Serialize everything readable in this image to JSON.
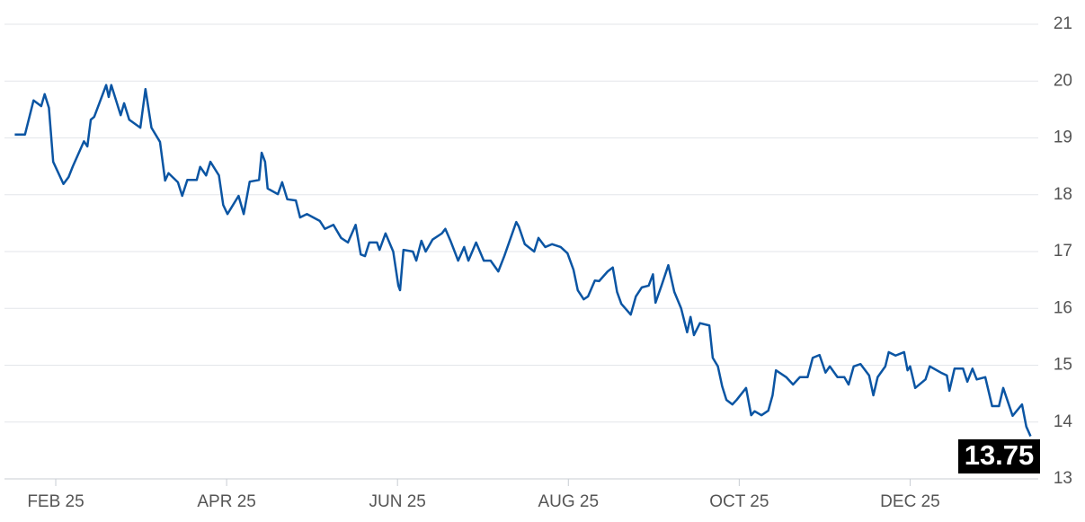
{
  "chart_data": {
    "type": "line",
    "color": "#0b55a3",
    "grid": true,
    "x": [
      0.52,
      0.64,
      0.74,
      0.83,
      0.87,
      0.92,
      0.97,
      1.09,
      1.15,
      1.2,
      1.33,
      1.37,
      1.41,
      1.45,
      1.59,
      1.62,
      1.65,
      1.76,
      1.8,
      1.86,
      1.99,
      2.05,
      2.12,
      2.22,
      2.28,
      2.32,
      2.43,
      2.48,
      2.54,
      2.65,
      2.69,
      2.76,
      2.81,
      2.91,
      2.96,
      3.01,
      3.14,
      3.2,
      3.27,
      3.38,
      3.41,
      3.45,
      3.48,
      3.6,
      3.65,
      3.71,
      3.81,
      3.86,
      3.94,
      4.09,
      4.15,
      4.25,
      4.34,
      4.42,
      4.51,
      4.57,
      4.62,
      4.67,
      4.76,
      4.79,
      4.86,
      4.95,
      5.01,
      5.03,
      5.07,
      5.18,
      5.22,
      5.28,
      5.33,
      5.41,
      5.52,
      5.56,
      5.62,
      5.71,
      5.78,
      5.83,
      5.92,
      6.01,
      6.09,
      6.18,
      6.25,
      6.39,
      6.42,
      6.49,
      6.6,
      6.65,
      6.73,
      6.81,
      6.91,
      6.99,
      7.06,
      7.11,
      7.18,
      7.23,
      7.31,
      7.36,
      7.46,
      7.52,
      7.57,
      7.62,
      7.73,
      7.79,
      7.86,
      7.94,
      7.99,
      8.02,
      8.09,
      8.17,
      8.24,
      8.32,
      8.39,
      8.43,
      8.47,
      8.54,
      8.65,
      8.69,
      8.75,
      8.8,
      8.85,
      8.92,
      8.97,
      9.08,
      9.14,
      9.18,
      9.26,
      9.34,
      9.39,
      9.43,
      9.55,
      9.63,
      9.71,
      9.8,
      9.86,
      9.94,
      10.01,
      10.06,
      10.15,
      10.23,
      10.28,
      10.34,
      10.42,
      10.52,
      10.57,
      10.62,
      10.71,
      10.75,
      10.83,
      10.93,
      10.97,
      11.0,
      11.06,
      11.18,
      11.23,
      11.36,
      11.43,
      11.46,
      11.52,
      11.62,
      11.67,
      11.73,
      11.78,
      11.88,
      11.96,
      12.04,
      12.09,
      12.2,
      12.31,
      12.36,
      12.41
    ],
    "values": [
      19.06,
      19.06,
      19.66,
      19.56,
      19.77,
      19.53,
      18.58,
      18.19,
      18.31,
      18.5,
      18.94,
      18.85,
      19.32,
      19.37,
      19.93,
      19.72,
      19.93,
      19.4,
      19.61,
      19.32,
      19.18,
      19.86,
      19.18,
      18.93,
      18.25,
      18.38,
      18.22,
      17.98,
      18.26,
      18.26,
      18.49,
      18.34,
      18.58,
      18.34,
      17.82,
      17.66,
      17.98,
      17.66,
      18.23,
      18.26,
      18.74,
      18.58,
      18.11,
      18.01,
      18.22,
      17.92,
      17.9,
      17.6,
      17.66,
      17.54,
      17.4,
      17.47,
      17.24,
      17.16,
      17.47,
      16.95,
      16.92,
      17.16,
      17.16,
      17.03,
      17.32,
      17.0,
      16.4,
      16.32,
      17.03,
      17.0,
      16.84,
      17.19,
      17.0,
      17.21,
      17.32,
      17.4,
      17.19,
      16.84,
      17.08,
      16.84,
      17.16,
      16.84,
      16.84,
      16.65,
      16.92,
      17.52,
      17.44,
      17.13,
      17.0,
      17.24,
      17.08,
      17.13,
      17.08,
      16.97,
      16.68,
      16.32,
      16.16,
      16.21,
      16.49,
      16.48,
      16.65,
      16.72,
      16.29,
      16.08,
      15.89,
      16.21,
      16.37,
      16.4,
      16.6,
      16.1,
      16.4,
      16.76,
      16.29,
      16.0,
      15.58,
      15.85,
      15.53,
      15.74,
      15.7,
      15.13,
      14.98,
      14.63,
      14.39,
      14.31,
      14.39,
      14.6,
      14.12,
      14.19,
      14.12,
      14.2,
      14.47,
      14.91,
      14.79,
      14.66,
      14.79,
      14.79,
      15.13,
      15.18,
      14.87,
      14.98,
      14.79,
      14.79,
      14.66,
      14.98,
      15.02,
      14.82,
      14.47,
      14.79,
      14.98,
      15.23,
      15.17,
      15.23,
      14.91,
      14.98,
      14.6,
      14.75,
      14.98,
      14.87,
      14.82,
      14.55,
      14.94,
      14.94,
      14.71,
      14.94,
      14.75,
      14.79,
      14.28,
      14.28,
      14.6,
      14.11,
      14.31,
      13.92,
      13.75
    ],
    "xlim": [
      0.4,
      12.5
    ],
    "xticks": [
      {
        "value": 1,
        "label": "FEB 25"
      },
      {
        "value": 3,
        "label": "APR 25"
      },
      {
        "value": 5,
        "label": "JUN 25"
      },
      {
        "value": 7,
        "label": "AUG 25"
      },
      {
        "value": 9,
        "label": "OCT 25"
      },
      {
        "value": 11,
        "label": "DEC 25"
      }
    ],
    "ylim": [
      13,
      21
    ],
    "yticks": [
      13,
      14,
      15,
      16,
      17,
      18,
      19,
      20,
      21
    ]
  }
}
